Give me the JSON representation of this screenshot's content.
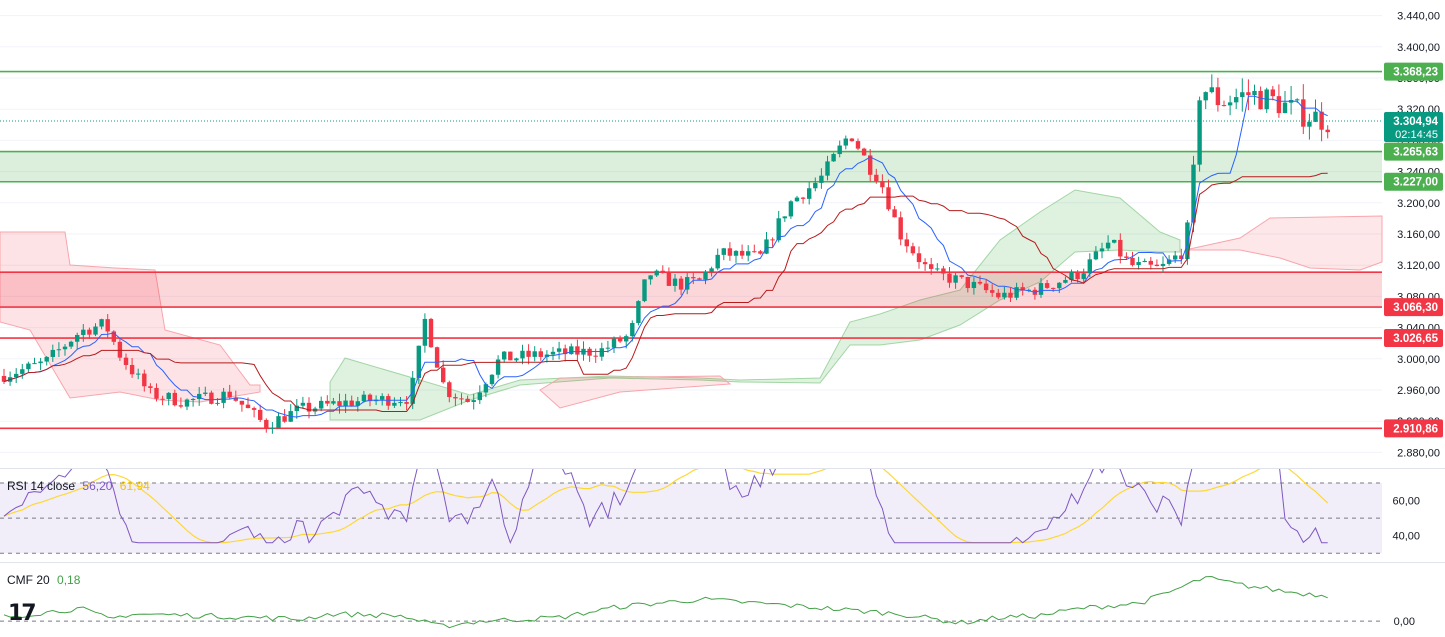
{
  "chart_data": {
    "type": "candlestick",
    "main": {
      "y_range": [
        2860,
        3460
      ],
      "ticks": [
        "3.440,00",
        "3.400,00",
        "3.360,00",
        "3.320,00",
        "3.280,00",
        "3.240,00",
        "3.200,00",
        "3.160,00",
        "3.120,00",
        "3.080,00",
        "3.040,00",
        "3.000,00",
        "2.960,00",
        "2.920,00",
        "2.880,00"
      ],
      "tick_values": [
        3440,
        3400,
        3360,
        3320,
        3280,
        3240,
        3200,
        3160,
        3120,
        3080,
        3040,
        3000,
        2960,
        2920,
        2880
      ],
      "current_price": {
        "value": 3304.94,
        "label": "3.304,94",
        "countdown": "02:14:45",
        "color": "#089981"
      },
      "levels": [
        {
          "value": 3368.23,
          "label": "3.368,23",
          "color": "#4caf50"
        },
        {
          "value": 3265.63,
          "label": "3.265,63",
          "color": "#4caf50"
        },
        {
          "value": 3227.0,
          "label": "3.227,00",
          "color": "#4caf50"
        },
        {
          "value": 3111.0,
          "label": "",
          "color": "#f23645"
        },
        {
          "value": 3066.3,
          "label": "3.066,30",
          "color": "#f23645"
        },
        {
          "value": 3026.65,
          "label": "3.026,65",
          "color": "#f23645"
        },
        {
          "value": 2910.86,
          "label": "2.910,86",
          "color": "#f23645"
        }
      ],
      "zones": [
        {
          "from": 3227.0,
          "to": 3265.63,
          "color": "#4caf50"
        },
        {
          "from": 3066.3,
          "to": 3111.0,
          "color": "#f23645"
        }
      ]
    },
    "rsi": {
      "title": "RSI 14 close",
      "value": "56,20",
      "ma_value": "61,94",
      "ticks": [
        "60,00",
        "40,00"
      ],
      "tick_values": [
        60,
        40
      ],
      "band": [
        30,
        70
      ],
      "y_range": [
        25,
        78
      ],
      "colors": {
        "rsi": "#7e57c2",
        "ma": "#fdd835"
      }
    },
    "cmf": {
      "title": "CMF 20",
      "value": "0,18",
      "ticks": [
        "0,00"
      ],
      "tick_values": [
        0
      ],
      "y_range": [
        -0.06,
        0.32
      ],
      "color": "#43a047"
    },
    "colors": {
      "up": "#089981",
      "down": "#f23645"
    }
  }
}
